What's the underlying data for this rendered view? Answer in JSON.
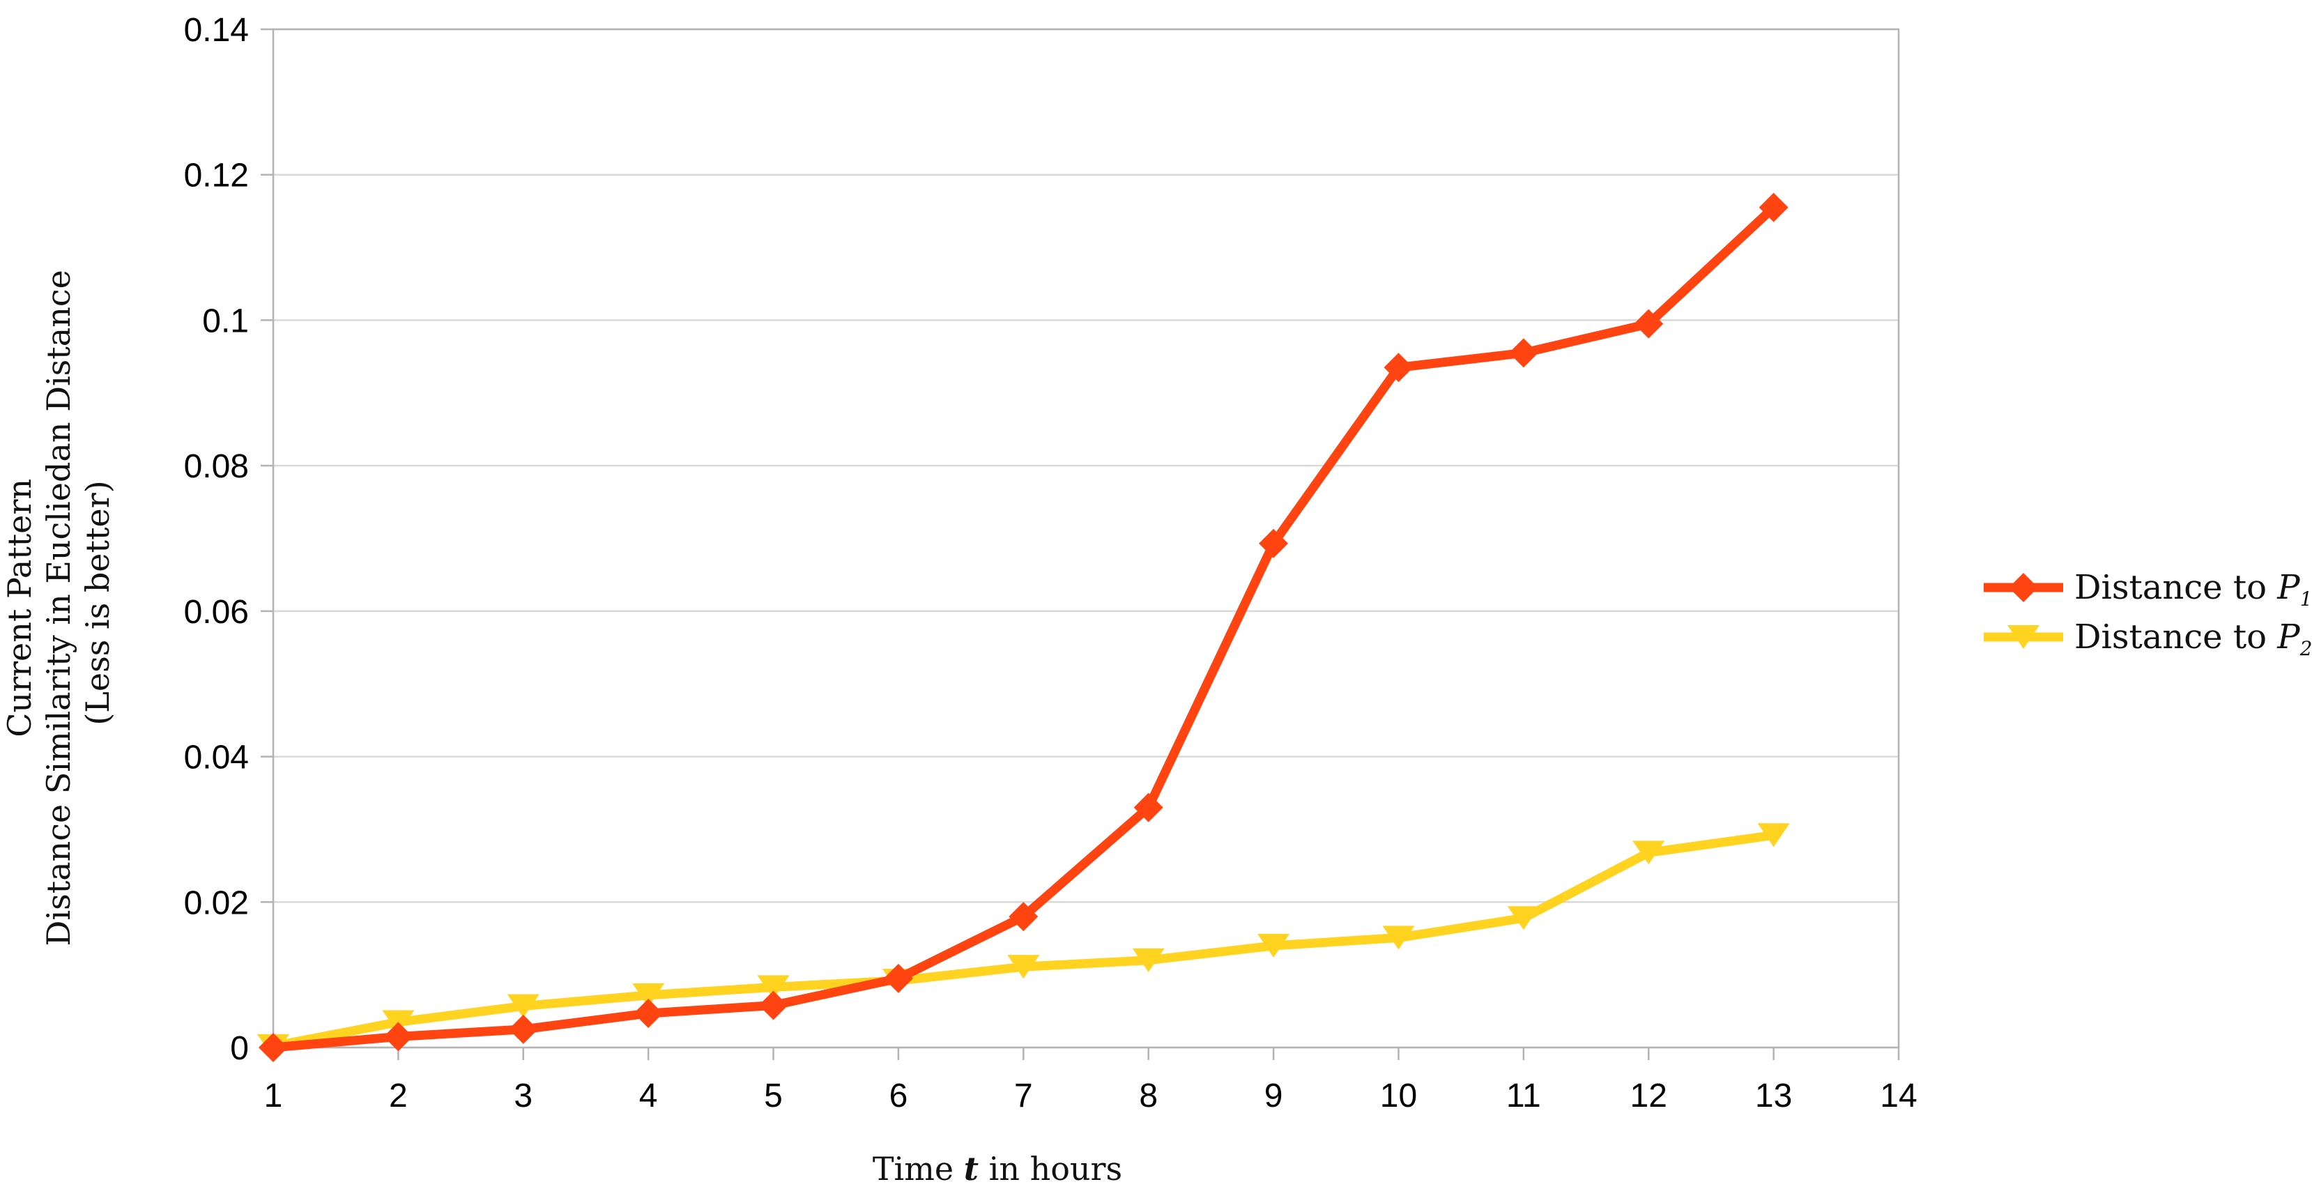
{
  "chart_data": {
    "type": "line",
    "x": [
      1,
      2,
      3,
      4,
      5,
      6,
      7,
      8,
      9,
      10,
      11,
      12,
      13
    ],
    "series": [
      {
        "name": "Distance to P1",
        "name_main": "Distance to ",
        "name_sym": "P",
        "name_sub": "1",
        "color": "#ff4411",
        "marker": "diamond",
        "values": [
          0.0,
          0.0015,
          0.0025,
          0.0047,
          0.0058,
          0.0095,
          0.018,
          0.033,
          0.0693,
          0.0935,
          0.0955,
          0.0995,
          0.1155
        ]
      },
      {
        "name": "Distance to P2",
        "name_main": "Distance to ",
        "name_sym": "P",
        "name_sub": "2",
        "color": "#ffd320",
        "marker": "triangle-down",
        "values": [
          0.0002,
          0.0035,
          0.0057,
          0.0072,
          0.0083,
          0.0092,
          0.0111,
          0.012,
          0.014,
          0.0151,
          0.0178,
          0.0268,
          0.0292
        ]
      }
    ],
    "xlabel": {
      "pre": "Time ",
      "var": "t",
      "post": " in hours"
    },
    "ylabel": [
      "Current Pattern",
      "Distance Similarity in Eucliedan Distance",
      "(Less is better)"
    ],
    "xlim": [
      1,
      14
    ],
    "ylim": [
      0,
      0.14
    ],
    "xticks": [
      "1",
      "2",
      "3",
      "4",
      "5",
      "6",
      "7",
      "8",
      "9",
      "10",
      "11",
      "12",
      "13",
      "14"
    ],
    "yticks": [
      {
        "value": 0,
        "label": "0"
      },
      {
        "value": 0.02,
        "label": "0.02"
      },
      {
        "value": 0.04,
        "label": "0.04"
      },
      {
        "value": 0.06,
        "label": "0.06"
      },
      {
        "value": 0.08,
        "label": "0.08"
      },
      {
        "value": 0.1,
        "label": "0.1"
      },
      {
        "value": 0.12,
        "label": "0.12"
      },
      {
        "value": 0.14,
        "label": "0.14"
      }
    ],
    "grid": true,
    "legend_position": "right",
    "grid_color": "#d9d9d9",
    "axis_color": "#b3b3b3"
  }
}
